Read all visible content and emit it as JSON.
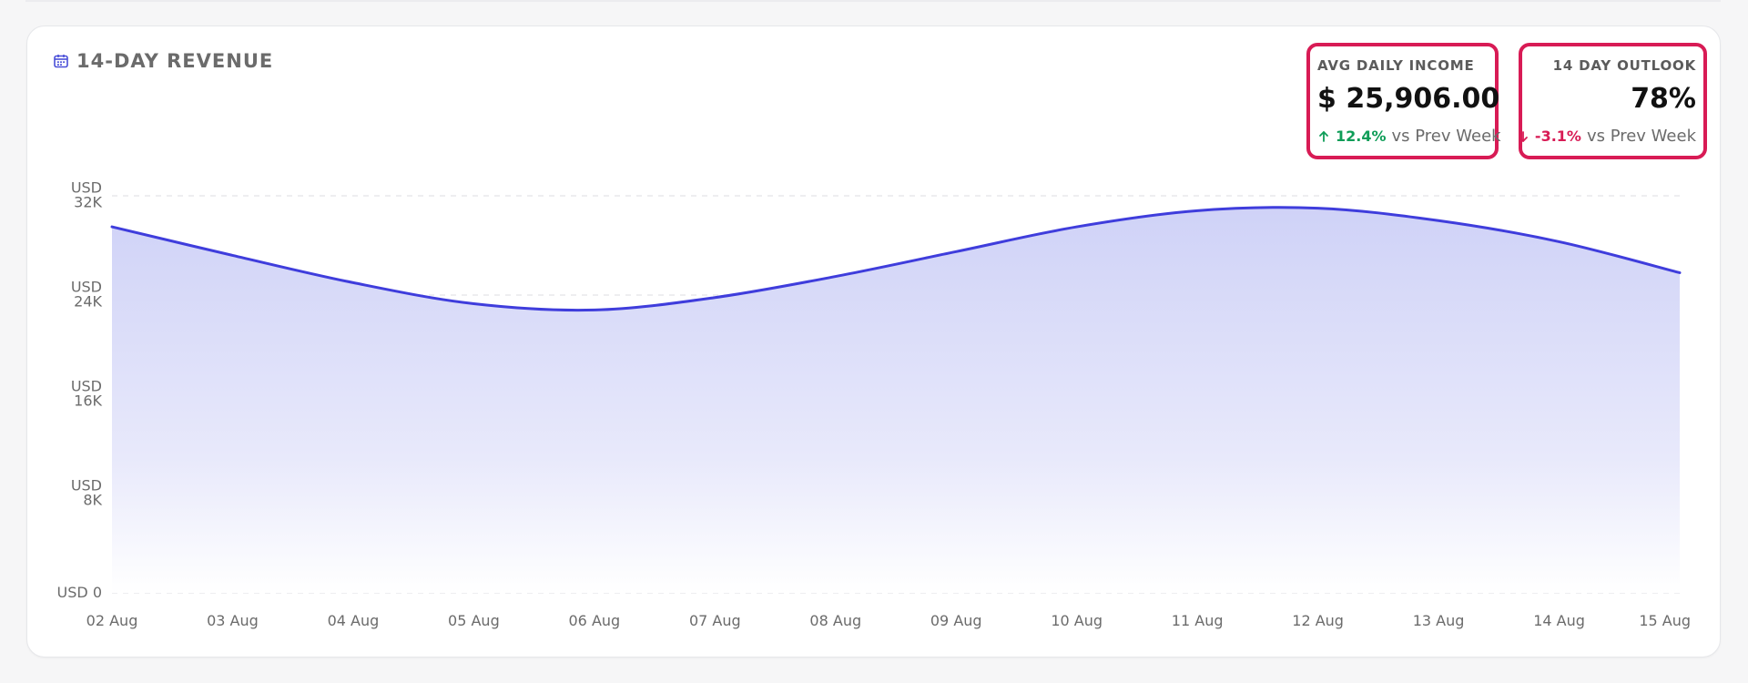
{
  "card": {
    "title": "14-DAY REVENUE"
  },
  "kpis": [
    {
      "label": "AVG DAILY INCOME",
      "value": "$ 25,906.00",
      "change": "12.4%",
      "direction": "up",
      "note": "vs Prev Week"
    },
    {
      "label": "14 DAY OUTLOOK",
      "value": "78%",
      "change": "-3.1%",
      "direction": "down",
      "note": "vs Prev Week"
    }
  ],
  "chart_data": {
    "type": "area",
    "title": "14-DAY REVENUE",
    "x": [
      "02 Aug",
      "03 Aug",
      "04 Aug",
      "05 Aug",
      "06 Aug",
      "07 Aug",
      "08 Aug",
      "09 Aug",
      "10 Aug",
      "11 Aug",
      "12 Aug",
      "13 Aug",
      "14 Aug",
      "15 Aug"
    ],
    "series": [
      {
        "values": [
          29500,
          27200,
          25000,
          23300,
          22800,
          23800,
          25500,
          27500,
          29500,
          30800,
          31000,
          30000,
          28300,
          25800
        ]
      }
    ],
    "ylim": [
      0,
      32000
    ],
    "y_ticks": [
      {
        "value": 0,
        "label": "USD 0"
      },
      {
        "value": 8000,
        "label": "USD 8K"
      },
      {
        "value": 16000,
        "label": "USD 16K"
      },
      {
        "value": 24000,
        "label": "USD 24K"
      },
      {
        "value": 32000,
        "label": "USD 32K"
      }
    ],
    "grid": true,
    "legend": "none"
  },
  "colors": {
    "accent": "#3f3ddc",
    "highlight_border": "#d81b55",
    "positive": "#0f9d58",
    "negative": "#d81b55",
    "grid": "#e3e3e8"
  },
  "icons": {
    "title_icon": "calendar-icon",
    "up_icon": "arrow-up-icon",
    "down_icon": "arrow-down-icon"
  }
}
